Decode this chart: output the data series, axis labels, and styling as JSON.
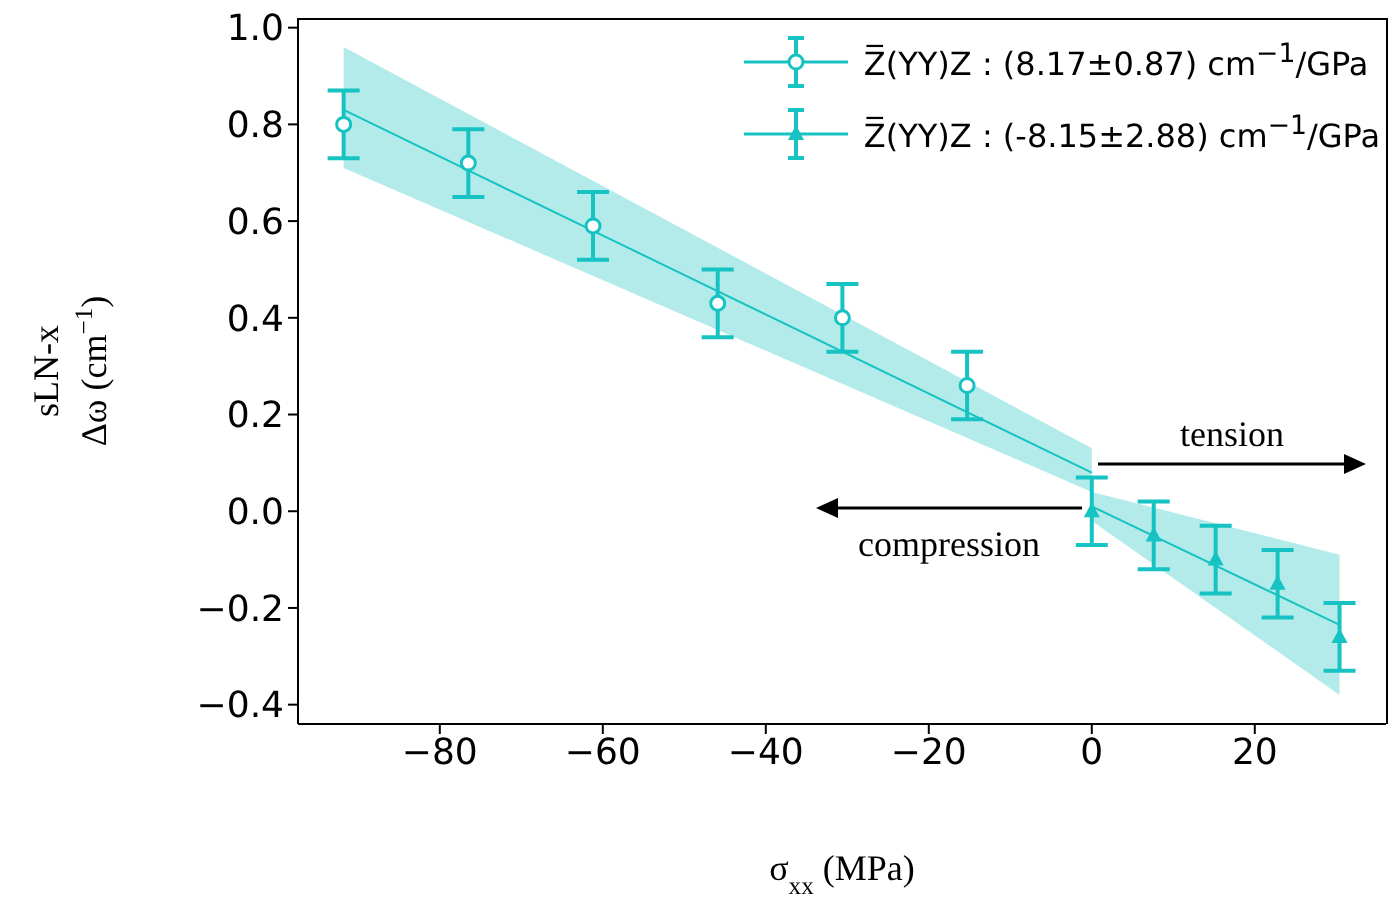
{
  "chart_data": {
    "type": "scatter",
    "xlabel": "σ$_{xx}$ (MPa)",
    "ylabel": "sLN-x\nΔω (cm$^{−1}$)",
    "xlim": [
      -97.4,
      36.1
    ],
    "ylim": [
      -0.44,
      1.02
    ],
    "xticks": [
      {
        "value": -80,
        "label": "−80"
      },
      {
        "value": -60,
        "label": "−60"
      },
      {
        "value": -40,
        "label": "−40"
      },
      {
        "value": -20,
        "label": "−20"
      },
      0,
      20
    ],
    "yticks": [
      {
        "value": -0.4,
        "label": "−0.4"
      },
      {
        "value": -0.2,
        "label": "−0.2"
      },
      {
        "value": 0,
        "label": "0.0"
      },
      {
        "value": 0.2,
        "label": "0.2"
      },
      {
        "value": 0.4,
        "label": "0.4"
      },
      {
        "value": 0.6,
        "label": "0.6"
      },
      {
        "value": 0.8,
        "label": "0.8"
      },
      {
        "value": 1,
        "label": "1.0"
      }
    ],
    "legend": "top right",
    "annotations": [
      "tension",
      "compression"
    ],
    "series": [
      {
        "name": "Z̅(YY)Z : (8.17±0.87) cm$^{−1}$/GPa",
        "color": "#17c2c2",
        "marker": "circle",
        "x": [
          -91.8,
          -76.5,
          -61.2,
          -45.9,
          -30.6,
          -15.3
        ],
        "values": [
          0.8,
          0.72,
          0.59,
          0.43,
          0.4,
          0.26
        ],
        "errors": [
          0.07,
          0.07,
          0.07,
          0.07,
          0.07,
          0.07
        ]
      },
      {
        "name": "Z̅(YY)Z : (-8.15±2.88) cm$^{−1}$/GPa",
        "color": "#17c2c2",
        "marker": "triangle",
        "x": [
          0,
          7.6,
          15.2,
          22.8,
          30.4
        ],
        "values": [
          0.0,
          -0.05,
          -0.1,
          -0.15,
          -0.26
        ],
        "errors": [
          0.07,
          0.07,
          0.07,
          0.07,
          0.07
        ]
      },
      {
        "type": "line",
        "color": "#17c2c2",
        "x": [
          -91.8,
          0
        ],
        "values": [
          0.83,
          0.08
        ],
        "lower": [
          0.71,
          0.04
        ],
        "upper": [
          0.96,
          0.13
        ]
      },
      {
        "type": "line",
        "color": "#17c2c2",
        "x": [
          0,
          30.4
        ],
        "values": [
          0.01,
          -0.235
        ],
        "lower": [
          -0.02,
          -0.38
        ],
        "upper": [
          0.04,
          -0.09
        ]
      }
    ]
  }
}
